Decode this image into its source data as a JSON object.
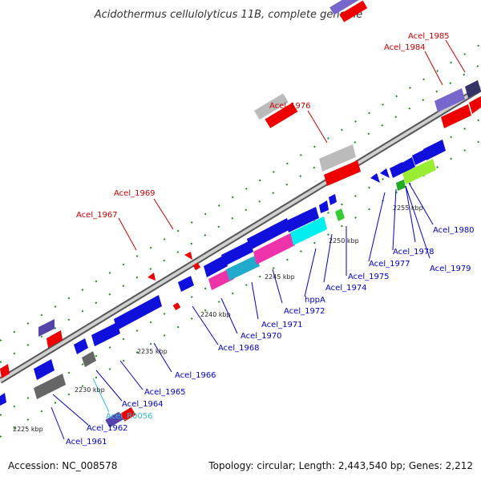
{
  "title": "Acidothermus cellulolyticus 11B, complete genome",
  "footer": {
    "accession": "Accession: NC_008578",
    "stats": "Topology: circular; Length: 2,443,540 bp; Genes: 2,212"
  },
  "colors": {
    "background": "#ffffff",
    "backbone": "#999999",
    "gene_forward_label": "#cc0000",
    "gene_reverse_label": "#0000cc",
    "rna_label": "#33bbdd",
    "tick_dots": "#228822"
  },
  "ticks": [
    "2225 kbp",
    "2230 kbp",
    "2235 kbp",
    "2240 kbp",
    "2245 kbp",
    "2250 kbp",
    "2255 kbp"
  ],
  "gene_labels_top": [
    "Acel_1967",
    "Acel_1969",
    "Acel_1976",
    "Acel_1984",
    "Acel_1985"
  ],
  "gene_labels_bottom": [
    "Acel_1961",
    "Acel_1962",
    "Acel_R0056",
    "Acel_1964",
    "Acel_1965",
    "Acel_1966",
    "Acel_1968",
    "Acel_1970",
    "Acel_1971",
    "Acel_1972",
    "hppA",
    "Acel_1974",
    "Acel_1975",
    "Acel_1977",
    "Acel_1978",
    "Acel_1979",
    "Acel_1980"
  ]
}
